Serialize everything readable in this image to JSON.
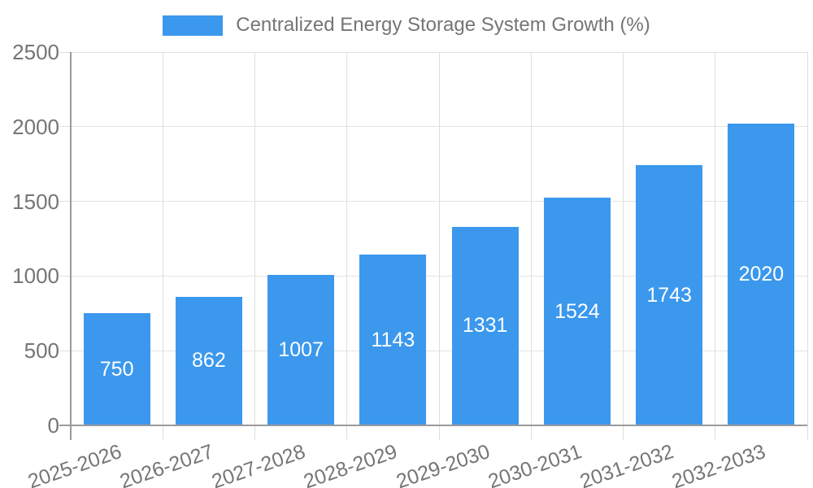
{
  "legend": {
    "label": "Centralized Energy Storage System Growth (%)"
  },
  "chart_data": {
    "type": "bar",
    "title": "Centralized Energy Storage System Growth (%)",
    "categories": [
      "2025-2026",
      "2026-2027",
      "2027-2028",
      "2028-2029",
      "2029-2030",
      "2030-2031",
      "2031-2032",
      "2032-2033"
    ],
    "values": [
      750,
      862,
      1007,
      1143,
      1331,
      1524,
      1743,
      2020
    ],
    "xlabel": "",
    "ylabel": "",
    "ylim": [
      0,
      2500
    ],
    "yticks": [
      0,
      500,
      1000,
      1500,
      2000,
      2500
    ],
    "grid": true,
    "legend_position": "top-center",
    "bar_label_position": "inside-center",
    "colors": {
      "bar": "#3B98ED",
      "bar_label": "#FFFFFF",
      "axis_text": "#757575",
      "gridline": "#E3E3E3",
      "axis_line": "#9A9A9A",
      "background": "#FFFFFF"
    }
  }
}
